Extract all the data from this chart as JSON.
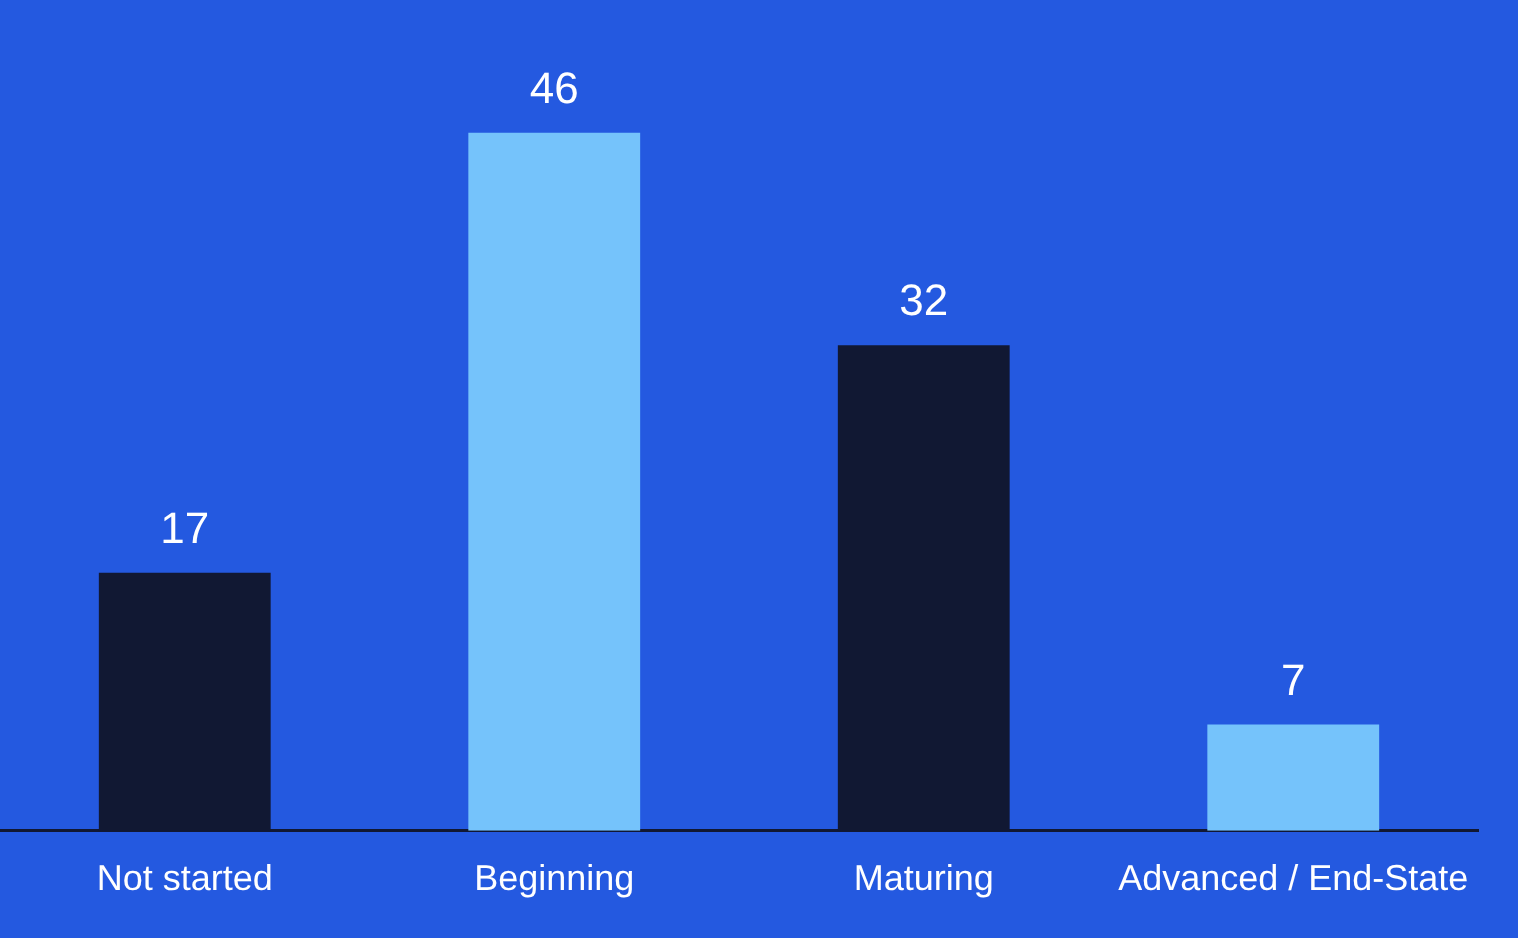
{
  "chart_data": {
    "type": "bar",
    "categories": [
      "Not started",
      "Beginning",
      "Maturing",
      "Advanced / End-State"
    ],
    "values": [
      17,
      46,
      32,
      7
    ],
    "colors": [
      "#111833",
      "#75c3fb",
      "#111833",
      "#75c3fb"
    ],
    "tick_labels": "x",
    "data_labels": true,
    "grid": false,
    "legend": false
  }
}
